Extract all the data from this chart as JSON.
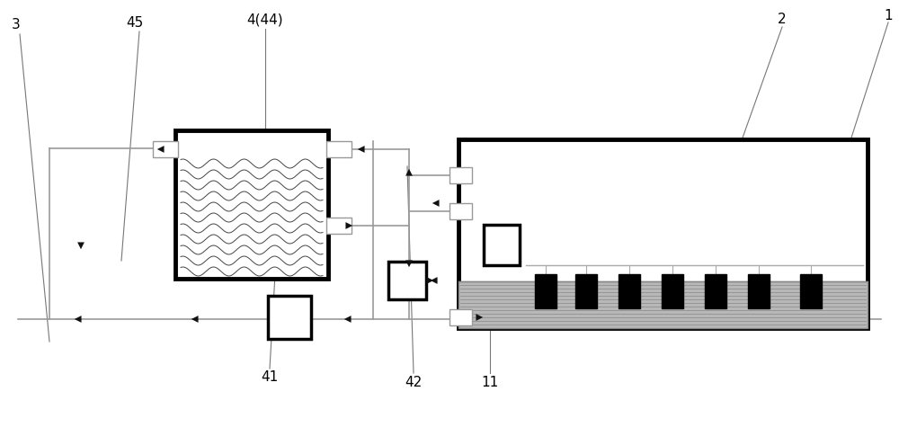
{
  "bg_color": "#ffffff",
  "lc": "#999999",
  "dc": "#000000",
  "ac": "#111111",
  "tlw": 1.2,
  "thklw": 3.5,
  "arrow_ms": 14
}
